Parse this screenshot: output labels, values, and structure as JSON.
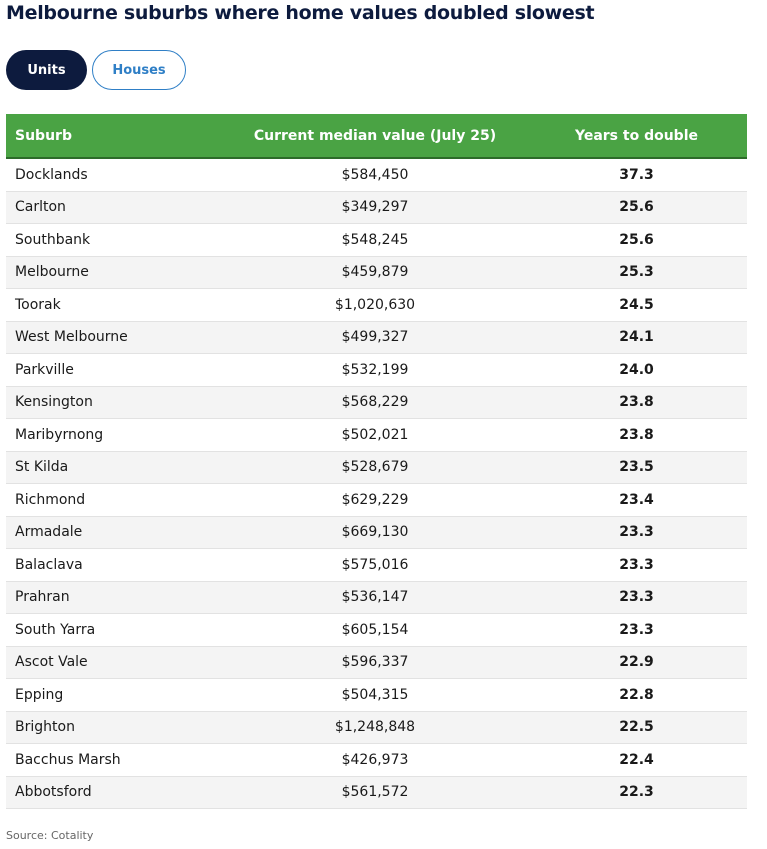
{
  "title": "Melbourne suburbs where home values doubled slowest",
  "tabs": [
    {
      "label": "Units",
      "active": true
    },
    {
      "label": "Houses",
      "active": false
    }
  ],
  "colors": {
    "header_bg": "#4aa344",
    "header_text": "#ffffff",
    "active_tab_bg": "#0d1b3e",
    "inactive_tab_text": "#2f7fc6"
  },
  "source": "Source: Cotality",
  "chart_data": {
    "type": "table",
    "columns": [
      "Suburb",
      "Current median value (July 25)",
      "Years to double"
    ],
    "rows": [
      [
        "Docklands",
        "$584,450",
        "37.3"
      ],
      [
        "Carlton",
        "$349,297",
        "25.6"
      ],
      [
        "Southbank",
        "$548,245",
        "25.6"
      ],
      [
        "Melbourne",
        "$459,879",
        "25.3"
      ],
      [
        "Toorak",
        "$1,020,630",
        "24.5"
      ],
      [
        "West Melbourne",
        "$499,327",
        "24.1"
      ],
      [
        "Parkville",
        "$532,199",
        "24.0"
      ],
      [
        "Kensington",
        "$568,229",
        "23.8"
      ],
      [
        "Maribyrnong",
        "$502,021",
        "23.8"
      ],
      [
        "St Kilda",
        "$528,679",
        "23.5"
      ],
      [
        "Richmond",
        "$629,229",
        "23.4"
      ],
      [
        "Armadale",
        "$669,130",
        "23.3"
      ],
      [
        "Balaclava",
        "$575,016",
        "23.3"
      ],
      [
        "Prahran",
        "$536,147",
        "23.3"
      ],
      [
        "South Yarra",
        "$605,154",
        "23.3"
      ],
      [
        "Ascot Vale",
        "$596,337",
        "22.9"
      ],
      [
        "Epping",
        "$504,315",
        "22.8"
      ],
      [
        "Brighton",
        "$1,248,848",
        "22.5"
      ],
      [
        "Bacchus Marsh",
        "$426,973",
        "22.4"
      ],
      [
        "Abbotsford",
        "$561,572",
        "22.3"
      ]
    ]
  }
}
